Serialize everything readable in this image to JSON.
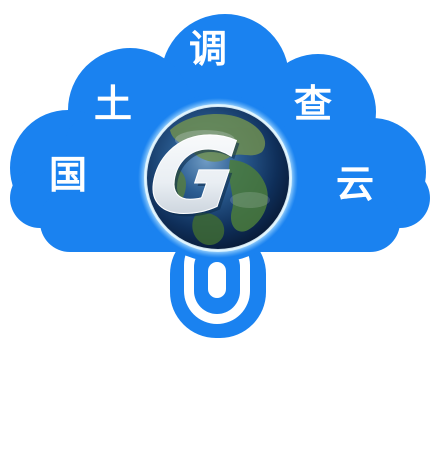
{
  "logo": {
    "characters": [
      "国",
      "土",
      "调",
      "查",
      "云"
    ],
    "emblem_letter": "G",
    "colors": {
      "cloud": "#1a82f0",
      "cloud_edge": "#0f6fdc",
      "glyph": "#ffffff",
      "globe_ocean": "#0d2a52",
      "globe_land": "#4c7d3c",
      "globe_glow": "#9fd8ff",
      "background": "#ffffff"
    },
    "icons": [
      "cloud-icon",
      "globe-icon",
      "magnifier-handle-icon"
    ]
  }
}
